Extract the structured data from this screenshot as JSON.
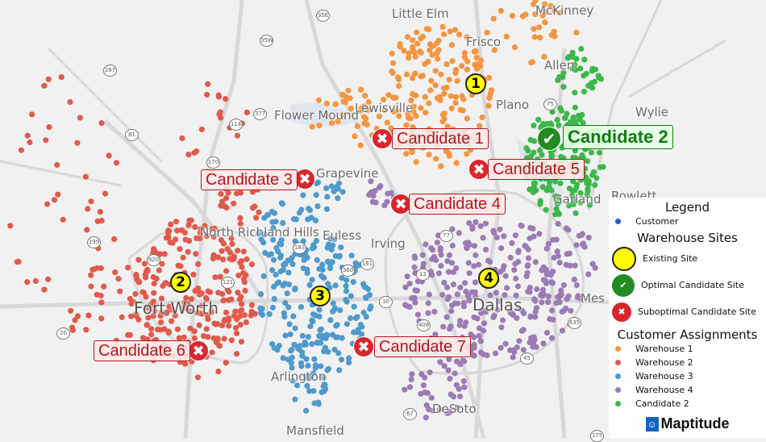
{
  "map": {
    "cities": [
      "Little Elm",
      "McKinney",
      "Frisco",
      "Allen",
      "Plano",
      "Wylie",
      "Lewisville",
      "Flower Mound",
      "Grapevine",
      "Garland",
      "Rowlett",
      "North Richland Hills",
      "Euless",
      "Irving",
      "Fort Worth",
      "Dallas",
      "Mes",
      "Arlington",
      "DeSoto",
      "Mansfield"
    ],
    "shields": [
      "35E",
      "35W",
      "287",
      "81",
      "114",
      "377",
      "170",
      "199",
      "820",
      "121",
      "183",
      "360",
      "161",
      "12",
      "77",
      "30",
      "408",
      "20",
      "67",
      "45",
      "635",
      "75",
      "175"
    ],
    "existing_sites": [
      "1",
      "2",
      "3",
      "4"
    ],
    "candidates": [
      {
        "label": "Candidate 1",
        "status": "suboptimal"
      },
      {
        "label": "Candidate 2",
        "status": "optimal"
      },
      {
        "label": "Candidate 3",
        "status": "suboptimal"
      },
      {
        "label": "Candidate 4",
        "status": "suboptimal"
      },
      {
        "label": "Candidate 5",
        "status": "suboptimal"
      },
      {
        "label": "Candidate 6",
        "status": "suboptimal"
      },
      {
        "label": "Candidate 7",
        "status": "suboptimal"
      }
    ]
  },
  "legend": {
    "title": "Legend",
    "customer": "Customer",
    "sites_heading": "Warehouse Sites",
    "existing": "Existing Site",
    "optimal": "Optimal Candidate Site",
    "suboptimal": "Suboptimal Candidate Site",
    "assign_heading": "Customer Assignments",
    "assignments": [
      {
        "label": "Warehouse 1",
        "color": "#f5953f"
      },
      {
        "label": "Warehouse 2",
        "color": "#e05a4c"
      },
      {
        "label": "Warehouse 3",
        "color": "#4f9acc"
      },
      {
        "label": "Warehouse 4",
        "color": "#9b7bb5"
      },
      {
        "label": "Candidate 2",
        "color": "#3cb84a"
      }
    ],
    "customer_color": "#1a5fd0",
    "logo": "Maptitude"
  }
}
